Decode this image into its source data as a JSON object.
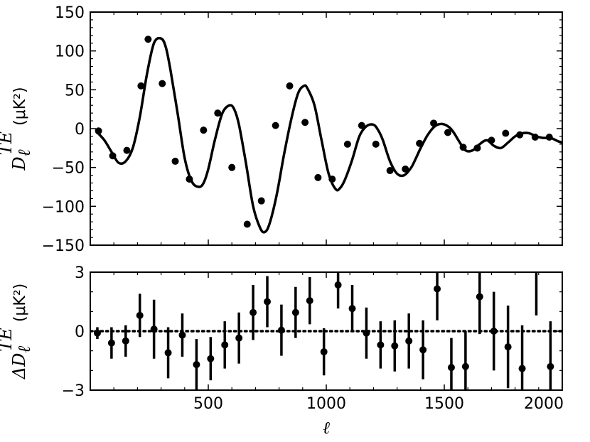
{
  "chart_data": [
    {
      "type": "line",
      "panel": "top",
      "ylabel_symbol": "D",
      "ylabel_sub": "ℓ",
      "ylabel_sup": "TE",
      "ylabel_unit": "(μK²)",
      "xlim": [
        0,
        2000
      ],
      "ylim": [
        -150,
        150
      ],
      "yticks": [
        -150,
        -100,
        -50,
        0,
        50,
        100,
        150
      ],
      "ytick_labels": [
        "−150",
        "−100",
        "−50",
        "0",
        "50",
        "100",
        "150"
      ],
      "grid": false,
      "series": [
        {
          "style": "solid-line",
          "x": [
            30,
            60,
            90,
            120,
            150,
            180,
            210,
            240,
            270,
            300,
            320,
            340,
            370,
            400,
            430,
            460,
            480,
            500,
            530,
            560,
            590,
            610,
            630,
            660,
            690,
            720,
            740,
            760,
            790,
            820,
            850,
            880,
            905,
            920,
            950,
            980,
            1010,
            1040,
            1060,
            1080,
            1110,
            1140,
            1170,
            1200,
            1220,
            1240,
            1270,
            1300,
            1330,
            1360,
            1380,
            1400,
            1430,
            1460,
            1490,
            1520,
            1540,
            1560,
            1590,
            1620,
            1650,
            1680,
            1710,
            1740,
            1770,
            1800,
            1830,
            1860,
            1890,
            1920,
            1950,
            1980,
            2000
          ],
          "y": [
            -5,
            -15,
            -30,
            -44,
            -42,
            -25,
            15,
            70,
            110,
            116,
            105,
            75,
            20,
            -38,
            -68,
            -75,
            -70,
            -52,
            -12,
            20,
            30,
            25,
            5,
            -45,
            -100,
            -128,
            -133,
            -122,
            -85,
            -35,
            10,
            45,
            55,
            52,
            30,
            -15,
            -58,
            -78,
            -76,
            -65,
            -40,
            -10,
            3,
            5,
            -2,
            -15,
            -42,
            -58,
            -60,
            -50,
            -38,
            -25,
            -8,
            3,
            6,
            2,
            -5,
            -15,
            -28,
            -28,
            -20,
            -15,
            -22,
            -25,
            -18,
            -10,
            -6,
            -6,
            -10,
            -12,
            -12,
            -16,
            -18
          ]
        },
        {
          "style": "points",
          "x": [
            35,
            95,
            155,
            215,
            245,
            305,
            360,
            420,
            480,
            540,
            600,
            665,
            725,
            785,
            845,
            910,
            965,
            1025,
            1090,
            1150,
            1210,
            1270,
            1335,
            1395,
            1455,
            1515,
            1580,
            1640,
            1700,
            1760,
            1820,
            1885,
            1945
          ],
          "y": [
            -3,
            -35,
            -28,
            55,
            115,
            58,
            -42,
            -65,
            -2,
            20,
            -50,
            -123,
            -93,
            4,
            55,
            8,
            -63,
            -65,
            -20,
            4,
            -20,
            -54,
            -52,
            -19,
            7,
            -5,
            -24,
            -25,
            -15,
            -6,
            -8,
            -11,
            -11
          ]
        }
      ]
    },
    {
      "type": "scatter",
      "panel": "bottom",
      "xlabel": "ℓ",
      "ylabel_symbol": "ΔD",
      "ylabel_sub": "ℓ",
      "ylabel_sup": "TE",
      "ylabel_unit": "(μK²)",
      "xlim": [
        0,
        2000
      ],
      "ylim": [
        -3,
        3
      ],
      "yticks": [
        -3,
        0,
        3
      ],
      "ytick_labels": [
        "−3",
        "0",
        "3"
      ],
      "xticks": [
        500,
        1000,
        1500,
        2000
      ],
      "xtick_labels": [
        "500",
        "1000",
        "1500",
        "2000"
      ],
      "reference_line": 0,
      "grid": false,
      "series": [
        {
          "style": "points-with-errorbars",
          "x": [
            30,
            90,
            150,
            210,
            270,
            330,
            390,
            450,
            510,
            570,
            630,
            690,
            750,
            810,
            870,
            930,
            990,
            1050,
            1110,
            1170,
            1230,
            1290,
            1350,
            1410,
            1470,
            1530,
            1590,
            1650,
            1710,
            1770,
            1830,
            1890,
            1950
          ],
          "y": [
            -0.1,
            -0.6,
            -0.5,
            0.8,
            0.1,
            -1.1,
            -0.2,
            -1.7,
            -1.4,
            -0.7,
            -0.35,
            0.95,
            1.5,
            0.05,
            0.95,
            1.55,
            -1.05,
            2.35,
            1.15,
            -0.1,
            -0.7,
            -0.75,
            -0.5,
            -0.95,
            2.15,
            -1.85,
            -1.8,
            1.75,
            0.0,
            -0.8,
            -1.9,
            3.2,
            -1.8
          ],
          "err": [
            0.3,
            0.8,
            0.8,
            1.1,
            1.5,
            1.3,
            1.1,
            1.3,
            1.1,
            1.2,
            1.3,
            1.4,
            1.3,
            1.3,
            1.3,
            1.2,
            1.2,
            1.2,
            1.2,
            1.3,
            1.2,
            1.3,
            1.4,
            1.5,
            1.6,
            1.5,
            1.8,
            1.9,
            2.0,
            2.1,
            2.2,
            2.4,
            2.3
          ]
        }
      ]
    }
  ]
}
